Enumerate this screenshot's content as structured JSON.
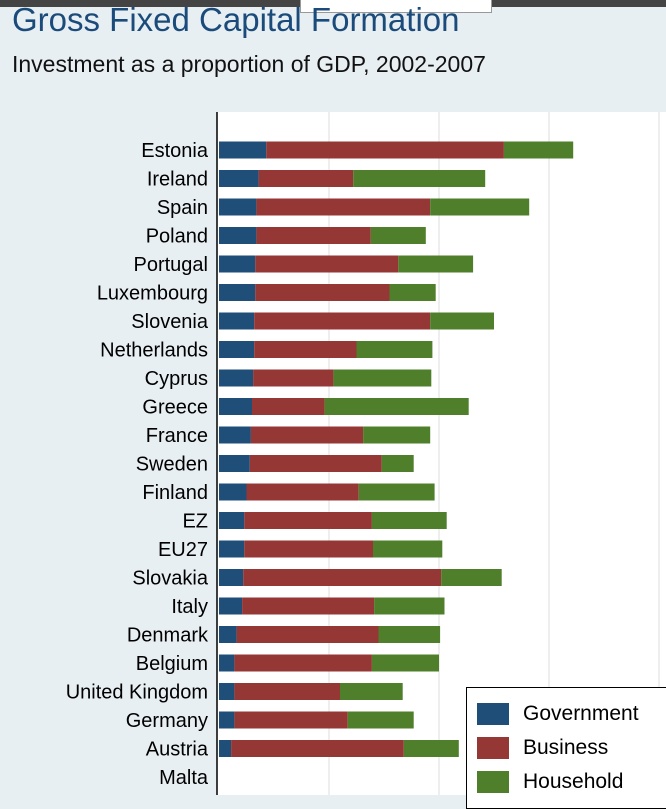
{
  "chart_data": {
    "type": "bar",
    "orientation": "horizontal",
    "stacked": true,
    "title": "Gross Fixed Capital Formation",
    "subtitle": "Investment as a proportion of GDP, 2002-2007",
    "xlabel": "",
    "ylabel": "",
    "grid": true,
    "legend_position": "bottom-right",
    "categories": [
      "Estonia",
      "Ireland",
      "Spain",
      "Poland",
      "Portugal",
      "Luxembourg",
      "Slovenia",
      "Netherlands",
      "Cyprus",
      "Greece",
      "France",
      "Sweden",
      "Finland",
      "EZ",
      "EU27",
      "Slovakia",
      "Italy",
      "Denmark",
      "Belgium",
      "United Kingdom",
      "Germany",
      "Austria",
      "Malta"
    ],
    "series": [
      {
        "name": "Government",
        "color": "#1f4e79",
        "values": [
          4.3,
          3.6,
          3.4,
          3.4,
          3.3,
          3.3,
          3.2,
          3.2,
          3.1,
          3.0,
          2.9,
          2.8,
          2.5,
          2.3,
          2.3,
          2.2,
          2.1,
          1.6,
          1.4,
          1.4,
          1.4,
          1.1,
          null
        ]
      },
      {
        "name": "Business",
        "color": "#953735",
        "values": [
          21.6,
          8.6,
          15.8,
          10.4,
          13.0,
          12.2,
          16.0,
          9.3,
          7.3,
          6.6,
          10.2,
          12.0,
          10.2,
          11.6,
          11.7,
          18.0,
          12.0,
          12.9,
          12.5,
          9.6,
          10.3,
          15.7,
          null
        ]
      },
      {
        "name": "Household",
        "color": "#4f7f2b",
        "values": [
          6.3,
          12.0,
          9.0,
          5.0,
          6.8,
          4.2,
          5.8,
          6.9,
          8.9,
          13.1,
          6.1,
          2.9,
          6.9,
          6.8,
          6.3,
          5.5,
          6.4,
          5.6,
          6.1,
          5.7,
          6.0,
          5.0,
          null
        ]
      }
    ]
  }
}
